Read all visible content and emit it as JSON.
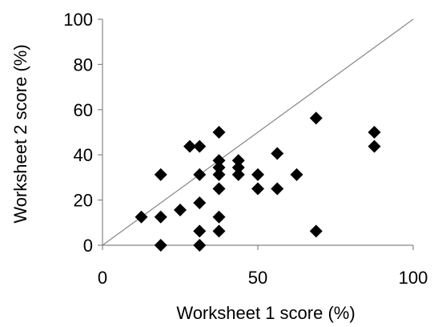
{
  "chart_data": {
    "type": "scatter",
    "title": "",
    "xlabel": "Worksheet 1 score (%)",
    "ylabel": "Worksheet 2 score (%)",
    "xlim": [
      0,
      100
    ],
    "ylim": [
      0,
      100
    ],
    "x_ticks": [
      0,
      50,
      100
    ],
    "y_ticks": [
      0,
      20,
      40,
      60,
      80,
      100
    ],
    "x_tick_labels": [
      "0",
      "50",
      "100"
    ],
    "y_tick_labels": [
      "0",
      "20",
      "40",
      "60",
      "80",
      "100"
    ],
    "grid": false,
    "legend": "none",
    "reference_line": {
      "type": "identity",
      "from": [
        0,
        0
      ],
      "to": [
        100,
        100
      ]
    },
    "marker": "diamond",
    "marker_color": "#000000",
    "axis_color": "#868686",
    "line_color": "#868686",
    "series": [
      {
        "points": [
          {
            "x": 12.5,
            "y": 12.5
          },
          {
            "x": 18.75,
            "y": 31.25
          },
          {
            "x": 18.75,
            "y": 12.5
          },
          {
            "x": 18.75,
            "y": 0
          },
          {
            "x": 25,
            "y": 15.6
          },
          {
            "x": 28.1,
            "y": 43.75
          },
          {
            "x": 31.25,
            "y": 43.75
          },
          {
            "x": 31.25,
            "y": 31.25
          },
          {
            "x": 31.25,
            "y": 18.75
          },
          {
            "x": 31.25,
            "y": 6.25
          },
          {
            "x": 31.25,
            "y": 0
          },
          {
            "x": 37.5,
            "y": 50
          },
          {
            "x": 37.5,
            "y": 37.5
          },
          {
            "x": 37.5,
            "y": 34.4
          },
          {
            "x": 37.5,
            "y": 31.25
          },
          {
            "x": 37.5,
            "y": 25
          },
          {
            "x": 37.5,
            "y": 12.5
          },
          {
            "x": 37.5,
            "y": 6.25
          },
          {
            "x": 43.75,
            "y": 37.5
          },
          {
            "x": 43.75,
            "y": 34.4
          },
          {
            "x": 43.75,
            "y": 31.25
          },
          {
            "x": 50,
            "y": 31.25
          },
          {
            "x": 50,
            "y": 25
          },
          {
            "x": 56.25,
            "y": 40.6
          },
          {
            "x": 56.25,
            "y": 25
          },
          {
            "x": 62.5,
            "y": 31.25
          },
          {
            "x": 68.75,
            "y": 56.25
          },
          {
            "x": 68.75,
            "y": 6.25
          },
          {
            "x": 87.5,
            "y": 50
          },
          {
            "x": 87.5,
            "y": 43.75
          }
        ]
      }
    ]
  }
}
